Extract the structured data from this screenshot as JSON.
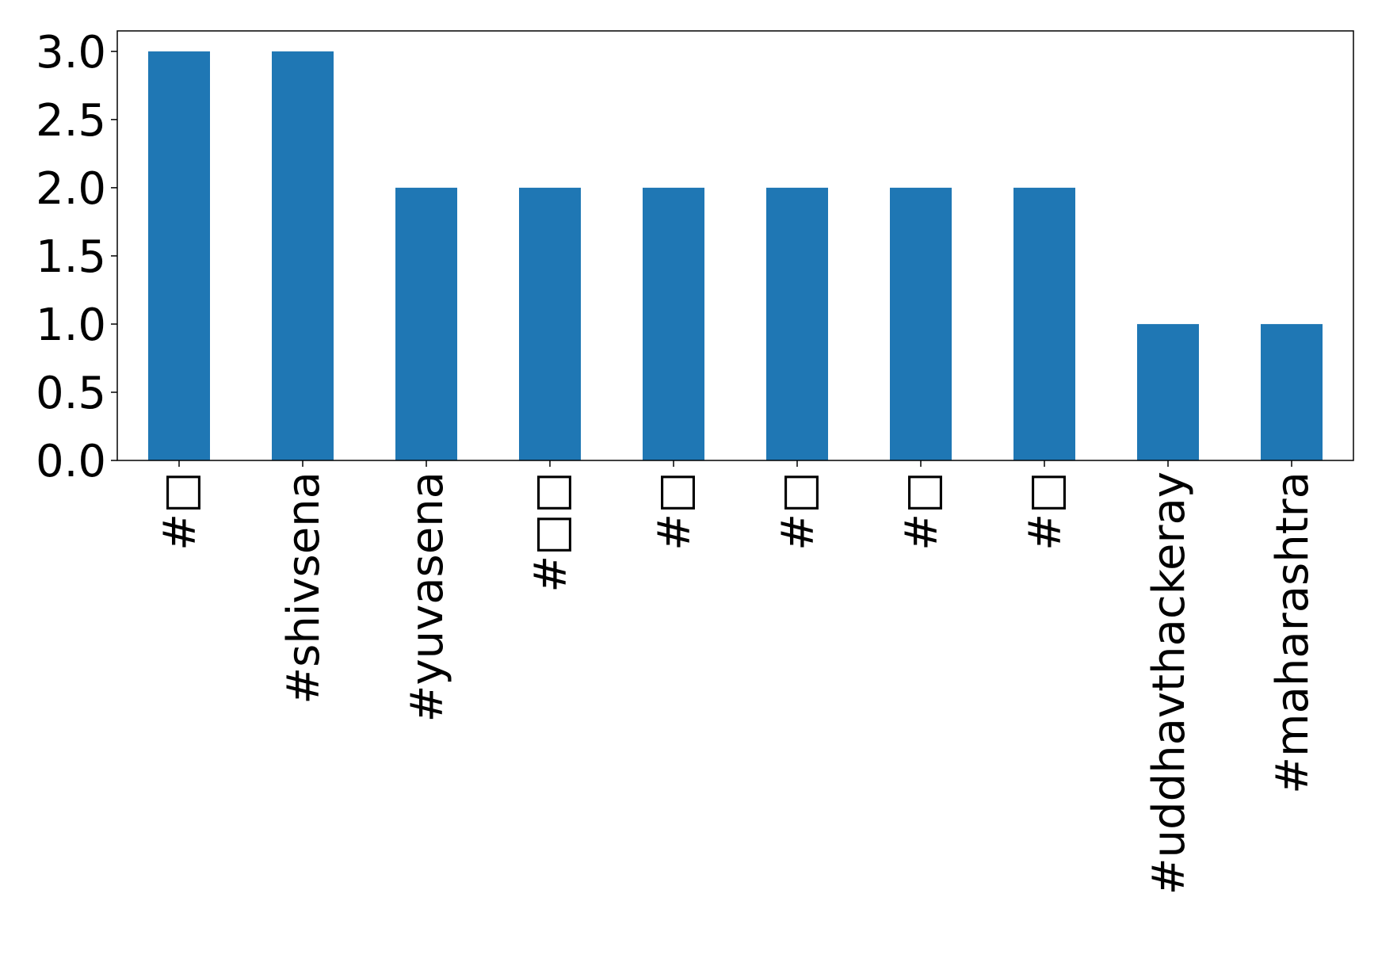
{
  "chart_data": {
    "type": "bar",
    "categories": [
      "#□",
      "#shivsena",
      "#yuvasena",
      "#□□",
      "#□",
      "#□",
      "#□",
      "#□",
      "#uddhavthackeray",
      "#maharashtra"
    ],
    "values": [
      3,
      3,
      2,
      2,
      2,
      2,
      2,
      2,
      1,
      1
    ],
    "color": "#1f77b4",
    "ylim": [
      0,
      3.15
    ],
    "yticks": [
      {
        "value": 0,
        "label": "0.0"
      },
      {
        "value": 0.5,
        "label": "0.5"
      },
      {
        "value": 1,
        "label": "1.0"
      },
      {
        "value": 1.5,
        "label": "1.5"
      },
      {
        "value": 2,
        "label": "2.0"
      },
      {
        "value": 2.5,
        "label": "2.5"
      },
      {
        "value": 3,
        "label": "3.0"
      }
    ],
    "grid": false
  }
}
